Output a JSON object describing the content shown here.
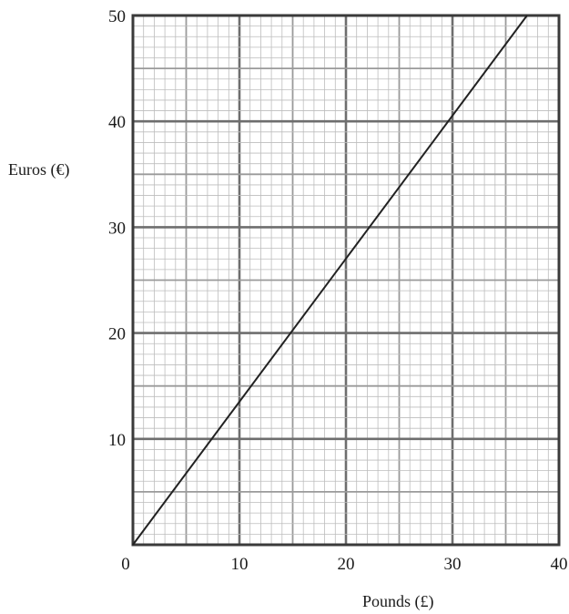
{
  "chart_data": {
    "type": "line",
    "title": "",
    "xlabel": "Pounds (£)",
    "ylabel": "Euros (€)",
    "xlim": [
      0,
      40
    ],
    "ylim": [
      0,
      50
    ],
    "x_ticks": [
      0,
      10,
      20,
      30,
      40
    ],
    "y_ticks": [
      10,
      20,
      30,
      40,
      50
    ],
    "x_tick_labels": [
      "0",
      "10",
      "20",
      "30",
      "40"
    ],
    "y_tick_labels": [
      "10",
      "20",
      "30",
      "40",
      "50"
    ],
    "grid": true,
    "grid_minor_step_x": 1,
    "grid_minor_step_y": 1,
    "grid_mid_step_x": 5,
    "grid_mid_step_y": 5,
    "grid_major_step_x": 10,
    "grid_major_step_y": 10,
    "series": [
      {
        "x": [
          0,
          37
        ],
        "y": [
          0,
          50
        ],
        "color": "#222222"
      }
    ],
    "colors": {
      "minor_grid": "#bdbdbd",
      "mid_grid": "#9a9a9a",
      "major_grid": "#6e6e6e",
      "frame": "#3a3a3a",
      "line": "#222222",
      "text": "#1a1a1a"
    }
  }
}
